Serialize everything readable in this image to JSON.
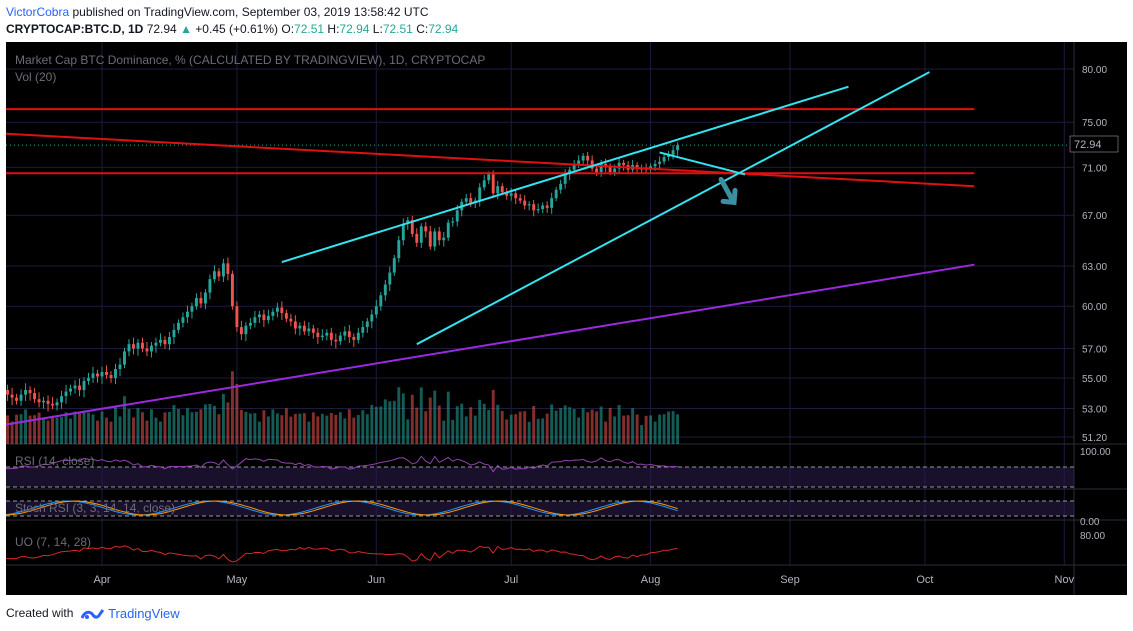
{
  "header": {
    "author": "VictorCobra",
    "published_text": "published on TradingView.com, September 03, 2019 13:58:42 UTC",
    "symbol": "CRYPTOCAP:BTC.D, 1D",
    "last": "72.94",
    "change": "+0.45 (+0.61%)",
    "o_label": "O:",
    "o": "72.51",
    "h_label": "H:",
    "h": "72.94",
    "l_label": "L:",
    "l": "72.51",
    "c_label": "C:",
    "c": "72.94"
  },
  "chart": {
    "main_title": "Market Cap BTC Dominance, % (CALCULATED BY TRADINGVIEW), 1D, CRYPTOCAP",
    "vol_label": "Vol (20)",
    "rsi_label": "RSI (14, close)",
    "stoch_label": "Stoch RSI (3, 3, 14, 14, close)",
    "uo_label": "UO (7, 14, 28)",
    "price_label": "72.94",
    "rsi_axis_label": "100.00",
    "stoch_axis_label": "0.00",
    "uo_axis_label": "80.00",
    "colors": {
      "background": "#000000",
      "grid": "#1c1c3c",
      "up": "#26a69a",
      "down": "#ef5350",
      "trendline_cyan": "#33e4f0",
      "trendline_red": "#e01010",
      "trendline_purple": "#9a2ae0",
      "arrow": "#3b8fa0",
      "axis_text": "#b2b5be",
      "brand": "#2962ff"
    }
  },
  "footer": {
    "created_with": "Created with",
    "brand": "TradingView"
  },
  "chart_data": {
    "type": "candlestick",
    "title": "Market Cap BTC Dominance, % (CALCULATED BY TRADINGVIEW), 1D, CRYPTOCAP",
    "price_axis": {
      "scale": "log",
      "ticks": [
        "80.00",
        "75.00",
        "71.00",
        "67.00",
        "63.00",
        "60.00",
        "57.00",
        "55.00",
        "53.00",
        "51.20"
      ]
    },
    "time_axis": {
      "ticks": [
        "Apr",
        "May",
        "Jun",
        "Jul",
        "Aug",
        "Sep",
        "Oct",
        "Nov"
      ]
    },
    "last_price": 72.94,
    "close_series": {
      "start": "2019-03-01",
      "interval": "1D",
      "values": [
        54.5,
        54.4,
        54.2,
        54.0,
        54.3,
        54.1,
        53.9,
        53.8,
        54.0,
        54.2,
        53.9,
        53.7,
        53.5,
        53.9,
        54.2,
        54.0,
        53.6,
        53.4,
        53.5,
        53.3,
        53.2,
        53.4,
        53.8,
        54.1,
        54.3,
        54.5,
        54.2,
        54.8,
        55.0,
        55.3,
        55.1,
        55.4,
        55.2,
        55.0,
        55.6,
        55.9,
        56.8,
        57.3,
        57.0,
        57.4,
        57.0,
        56.8,
        57.2,
        57.4,
        57.6,
        57.3,
        57.8,
        58.3,
        58.8,
        59.2,
        59.6,
        60.0,
        60.6,
        60.2,
        61.0,
        62.0,
        62.6,
        62.2,
        63.2,
        62.4,
        60.0,
        58.5,
        58.0,
        58.6,
        58.8,
        59.2,
        59.4,
        59.0,
        59.3,
        59.6,
        59.9,
        59.5,
        59.1,
        58.9,
        58.4,
        58.6,
        58.2,
        58.4,
        58.1,
        57.8,
        57.9,
        58.1,
        57.6,
        57.5,
        57.9,
        58.2,
        57.8,
        57.6,
        58.1,
        58.5,
        58.9,
        59.4,
        60.0,
        60.8,
        61.6,
        62.5,
        63.6,
        65.0,
        66.3,
        66.6,
        65.5,
        64.8,
        66.1,
        65.7,
        64.5,
        65.7,
        65.0,
        65.2,
        66.4,
        66.5,
        67.4,
        68.1,
        68.4,
        68.0,
        68.2,
        69.3,
        69.9,
        70.4,
        68.8,
        69.4,
        68.9,
        68.6,
        68.8,
        68.4,
        68.2,
        67.8,
        67.9,
        67.4,
        67.5,
        67.8,
        67.6,
        68.4,
        69.1,
        69.6,
        70.4,
        70.8,
        71.3,
        71.6,
        72.0,
        71.6,
        70.9,
        70.6,
        71.3,
        71.1,
        70.6,
        70.9,
        71.4,
        71.2,
        70.8,
        71.2,
        70.9,
        70.9,
        70.8,
        71.1,
        71.3,
        71.5,
        71.9,
        72.1,
        72.5,
        72.94
      ]
    },
    "volume_indicator": "Vol (20)",
    "oscillators": [
      {
        "name": "RSI (14, close)",
        "axis_tick": "100.00"
      },
      {
        "name": "Stoch RSI (3, 3, 14, 14, close)",
        "axis_tick": "0.00"
      },
      {
        "name": "UO (7, 14, 28)",
        "axis_tick": "80.00"
      }
    ]
  }
}
